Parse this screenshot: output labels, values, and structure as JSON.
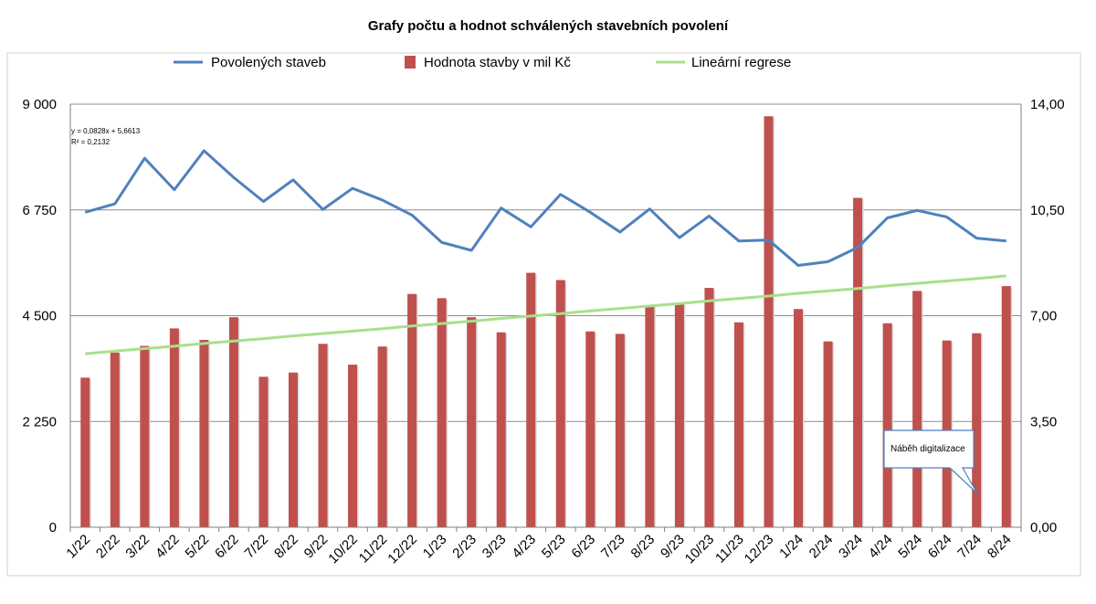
{
  "chart_data": {
    "type": "bar",
    "title": "Grafy počtu a hodnot schválených stavebních povolení",
    "categories": [
      "1/22",
      "2/22",
      "3/22",
      "4/22",
      "5/22",
      "6/22",
      "7/22",
      "8/22",
      "9/22",
      "10/22",
      "11/22",
      "12/22",
      "1/23",
      "2/23",
      "3/23",
      "4/23",
      "5/23",
      "6/23",
      "7/23",
      "8/23",
      "9/23",
      "10/23",
      "11/23",
      "12/23",
      "1/24",
      "2/24",
      "3/24",
      "4/24",
      "5/24",
      "6/24",
      "7/24",
      "8/24"
    ],
    "series": [
      {
        "name": "Povolených staveb",
        "type": "line",
        "axis": "left",
        "color": "#4f81bd",
        "values": [
          6700,
          6880,
          7850,
          7180,
          8010,
          7440,
          6930,
          7390,
          6760,
          7210,
          6960,
          6640,
          6060,
          5890,
          6790,
          6390,
          7080,
          6700,
          6280,
          6770,
          6160,
          6620,
          6090,
          6110,
          5570,
          5650,
          5950,
          6580,
          6740,
          6600,
          6150,
          6090
        ]
      },
      {
        "name": "Hodnota stavby v mil Kč",
        "type": "bar",
        "axis": "right",
        "color": "#c0504d",
        "values": [
          4.95,
          5.78,
          6.0,
          6.58,
          6.2,
          6.95,
          4.98,
          5.12,
          6.07,
          5.38,
          5.98,
          7.72,
          7.58,
          6.95,
          6.45,
          8.42,
          8.18,
          6.48,
          6.4,
          7.35,
          7.42,
          7.92,
          6.78,
          13.6,
          7.22,
          6.15,
          10.9,
          6.75,
          7.82,
          6.18,
          6.42,
          7.98
        ]
      },
      {
        "name": "Lineární regrese",
        "type": "line",
        "axis": "right",
        "color": "#a8e08c",
        "values": [
          5.74,
          5.83,
          5.91,
          5.99,
          6.08,
          6.16,
          6.24,
          6.33,
          6.41,
          6.49,
          6.57,
          6.66,
          6.74,
          6.82,
          6.91,
          6.99,
          7.07,
          7.16,
          7.24,
          7.32,
          7.4,
          7.49,
          7.57,
          7.65,
          7.74,
          7.82,
          7.9,
          7.99,
          8.07,
          8.15,
          8.23,
          8.32
        ]
      }
    ],
    "y_left": {
      "min": 0,
      "max": 9000,
      "ticks": [
        "0",
        "2 250",
        "4 500",
        "6 750",
        "9 000"
      ]
    },
    "y_right": {
      "min": 0,
      "max": 14,
      "ticks": [
        "0,00",
        "3,50",
        "7,00",
        "10,50",
        "14,00"
      ]
    },
    "grid": true,
    "legend_position": "top",
    "regression_equation": "y = 0,0828x + 5,6613",
    "r_squared": "R² = 0,2132",
    "annotation": {
      "text": "Náběh digitalizace",
      "category": "7/24"
    }
  }
}
